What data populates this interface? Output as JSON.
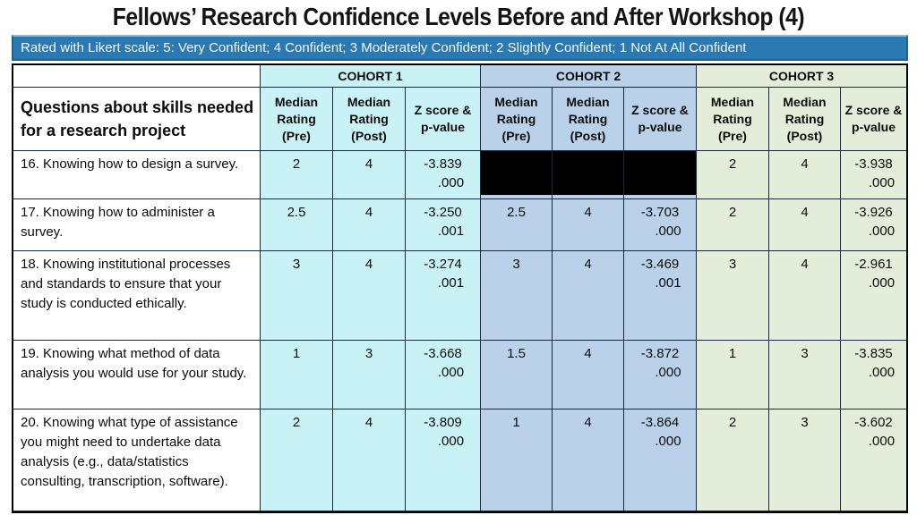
{
  "title": "Fellows’ Research Confidence Levels Before and After Workshop (4)",
  "subtitle": "Rated with Likert scale: 5: Very Confident; 4 Confident; 3 Moderately Confident; 2 Slightly Confident; 1 Not At All Confident",
  "colors": {
    "banner_blue": "#2b79b3",
    "banner_border": "#1d6196",
    "cohort1_fill": "#c9f2f7",
    "cohort2_fill": "#b9d2e9",
    "cohort3_fill": "#e4edda",
    "grid_line": "#15283d",
    "redaction": "#000000"
  },
  "table": {
    "question_header": "Questions about skills needed for a research project",
    "cohorts": [
      "COHORT 1",
      "COHORT 2",
      "COHORT 3"
    ],
    "sub_headers": [
      "Median Rating (Pre)",
      "Median Rating (Post)",
      "Z score & p-value"
    ],
    "rows": [
      {
        "question": "16. Knowing how to design a survey.",
        "c1": {
          "pre": "2",
          "post": "4",
          "z": "-3.839",
          "p": ".000"
        },
        "c2": {
          "pre": "",
          "post": "",
          "z": "",
          "p": "",
          "redacted": true
        },
        "c3": {
          "pre": "2",
          "post": "4",
          "z": "-3.938",
          "p": ".000"
        }
      },
      {
        "question": "17. Knowing how to administer a survey.",
        "c1": {
          "pre": "2.5",
          "post": "4",
          "z": "-3.250",
          "p": ".001"
        },
        "c2": {
          "pre": "2.5",
          "post": "4",
          "z": "-3.703",
          "p": ".000"
        },
        "c3": {
          "pre": "2",
          "post": "4",
          "z": "-3.926",
          "p": ".000"
        }
      },
      {
        "question": "18. Knowing institutional processes and standards to ensure that your study is conducted ethically.",
        "c1": {
          "pre": "3",
          "post": "4",
          "z": "-3.274",
          "p": ".001"
        },
        "c2": {
          "pre": "3",
          "post": "4",
          "z": "-3.469",
          "p": ".001"
        },
        "c3": {
          "pre": "3",
          "post": "4",
          "z": "-2.961",
          "p": ".000"
        }
      },
      {
        "question": "19. Knowing what method of data analysis you would use for your study.",
        "c1": {
          "pre": "1",
          "post": "3",
          "z": "-3.668",
          "p": ".000"
        },
        "c2": {
          "pre": "1.5",
          "post": "4",
          "z": "-3.872",
          "p": ".000"
        },
        "c3": {
          "pre": "1",
          "post": "3",
          "z": "-3.835",
          "p": ".000"
        }
      },
      {
        "question": "20. Knowing what type of assistance you might need to undertake data analysis (e.g., data/statistics consulting, transcription, software).",
        "c1": {
          "pre": "2",
          "post": "4",
          "z": "-3.809",
          "p": ".000"
        },
        "c2": {
          "pre": "1",
          "post": "4",
          "z": "-3.864",
          "p": ".000"
        },
        "c3": {
          "pre": "2",
          "post": "3",
          "z": "-3.602",
          "p": ".000"
        }
      }
    ]
  }
}
